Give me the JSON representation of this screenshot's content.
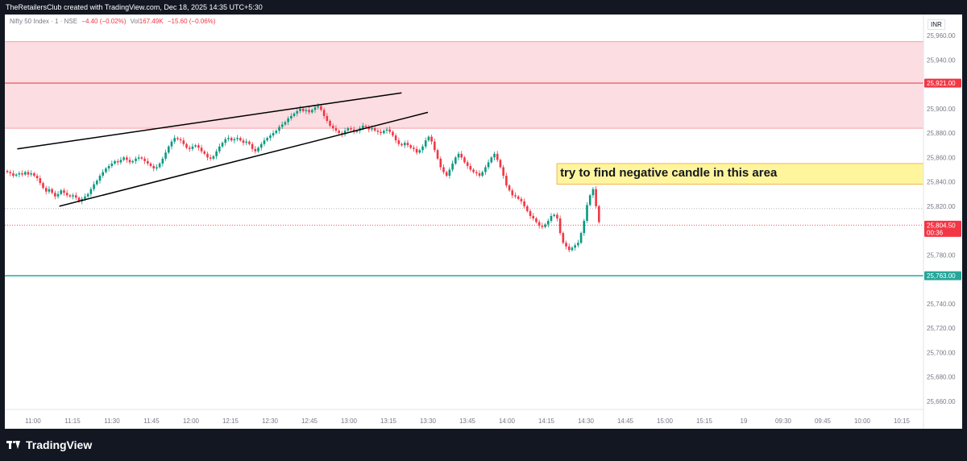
{
  "header": {
    "attribution": "TheRetailersClub created with TradingView.com, Dec 18, 2025 14:35 UTC+5:30"
  },
  "legend": {
    "symbol": "Nifty 50 Index · 1 · NSE",
    "change": "−4.40 (−0.02%)",
    "vol_label": "Vol",
    "vol_value": "167.49K",
    "vol_change": "−15.60 (−0.06%)"
  },
  "currency": "INR",
  "annotation": {
    "text": "try to find negative candle in this area"
  },
  "footer": {
    "brand": "TradingView"
  },
  "colors": {
    "up": "#089981",
    "down": "#f23645",
    "zone": "#fcdde1",
    "annotation_bg": "#fff59d",
    "support": "#26a69a"
  },
  "chart_data": {
    "type": "candlestick",
    "symbol": "Nifty 50 Index",
    "interval": "1",
    "exchange": "NSE",
    "ylim": [
      25650,
      25980
    ],
    "y_ticks": [
      25960,
      25940,
      25920,
      25900,
      25880,
      25860,
      25840,
      25820,
      25800,
      25780,
      25760,
      25740,
      25720,
      25700,
      25680,
      25660
    ],
    "y_tick_labels": [
      "25,960.00",
      "25,940.00",
      "",
      "25,900.00",
      "25,880.00",
      "25,860.00",
      "25,840.00",
      "25,820.00",
      "",
      "25,780.00",
      "",
      "25,740.00",
      "25,720.00",
      "25,700.00",
      "25,680.00",
      "25,660.00"
    ],
    "x_ticks": [
      "11:00",
      "11:15",
      "11:30",
      "11:45",
      "12:00",
      "12:15",
      "12:30",
      "12:45",
      "13:00",
      "13:15",
      "13:30",
      "13:45",
      "14:00",
      "14:15",
      "14:30",
      "14:45",
      "15:00",
      "15:15",
      "19",
      "09:30",
      "09:45",
      "10:00",
      "10:15"
    ],
    "resistance_zone": {
      "from": 25884,
      "to": 25955,
      "line": 25921
    },
    "support_line": 25763,
    "support_label": "25,763.00",
    "resistance_label": "25,921.00",
    "last_price": 25804.5,
    "last_price_label": "25,804.50",
    "countdown": "00:36",
    "dotted_level": 25818,
    "trendlines": [
      {
        "from": {
          "time": "10:54",
          "price": 25867
        },
        "to": {
          "time": "13:20",
          "price": 25913
        }
      },
      {
        "from": {
          "time": "11:10",
          "price": 25820
        },
        "to": {
          "time": "13:30",
          "price": 25897
        }
      }
    ],
    "annotation_zone": {
      "from_time": "14:19",
      "from": 25838,
      "to": 25855
    },
    "candles_close": [
      25848,
      25847,
      25845,
      25846,
      25847,
      25846,
      25848,
      25846,
      25847,
      25845,
      25843,
      25839,
      25835,
      25832,
      25834,
      25831,
      25828,
      25830,
      25833,
      25831,
      25829,
      25828,
      25829,
      25827,
      25824,
      25826,
      25828,
      25830,
      25834,
      25838,
      25841,
      25845,
      25848,
      25851,
      25853,
      25855,
      25857,
      25856,
      25858,
      25860,
      25858,
      25856,
      25857,
      25859,
      25860,
      25859,
      25857,
      25855,
      25853,
      25851,
      25852,
      25855,
      25859,
      25864,
      25869,
      25873,
      25876,
      25875,
      25874,
      25871,
      25868,
      25867,
      25869,
      25870,
      25868,
      25865,
      25863,
      25860,
      25859,
      25861,
      25865,
      25869,
      25872,
      25875,
      25876,
      25874,
      25875,
      25876,
      25874,
      25872,
      25873,
      25871,
      25867,
      25865,
      25868,
      25871,
      25874,
      25876,
      25878,
      25880,
      25882,
      25885,
      25887,
      25889,
      25892,
      25894,
      25896,
      25898,
      25900,
      25898,
      25899,
      25897,
      25899,
      25901,
      25902,
      25899,
      25894,
      25890,
      25886,
      25884,
      25882,
      25880,
      25879,
      25882,
      25884,
      25883,
      25881,
      25882,
      25884,
      25886,
      25885,
      25883,
      25884,
      25882,
      25881,
      25880,
      25882,
      25883,
      25881,
      25878,
      25874,
      25871,
      25870,
      25872,
      25870,
      25868,
      25867,
      25864,
      25866,
      25869,
      25874,
      25877,
      25873,
      25866,
      25859,
      25852,
      25848,
      25845,
      25850,
      25855,
      25860,
      25863,
      25860,
      25856,
      25853,
      25850,
      25848,
      25847,
      25845,
      25848,
      25852,
      25856,
      25860,
      25863,
      25858,
      25852,
      25845,
      25837,
      25833,
      25829,
      25828,
      25826,
      25824,
      25820,
      25816,
      25812,
      25810,
      25807,
      25804,
      25803,
      25805,
      25808,
      25812,
      25813,
      25810,
      25798,
      25790,
      25787,
      25784,
      25786,
      25788,
      25790,
      25798,
      25808,
      25821,
      25829,
      25834,
      25820,
      25807
    ]
  }
}
